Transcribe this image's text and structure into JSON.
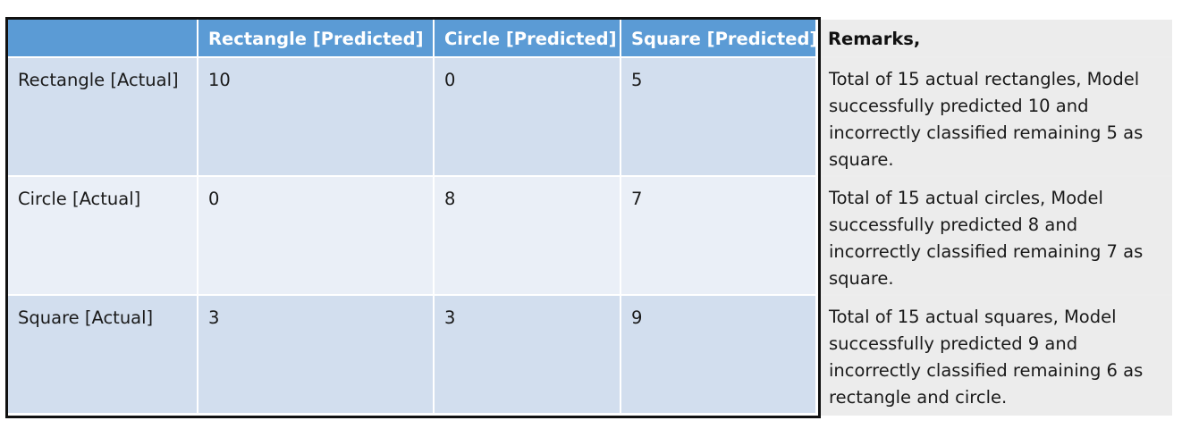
{
  "chart_data": {
    "type": "table",
    "columns": [
      "",
      "Rectangle [Predicted]",
      "Circle [Predicted]",
      "Square [Predicted]",
      "Remarks,"
    ],
    "rows": [
      {
        "label": "Rectangle [Actual]",
        "values": [
          "10",
          "0",
          "5"
        ],
        "remark": "Total of 15 actual rectangles, Model successfully predicted 10 and incorrectly classified remaining 5 as square."
      },
      {
        "label": "Circle [Actual]",
        "values": [
          "0",
          "8",
          "7"
        ],
        "remark": "Total of 15 actual circles, Model successfully predicted 8 and incorrectly classified remaining 7 as square."
      },
      {
        "label": "Square [Actual]",
        "values": [
          "3",
          "3",
          "9"
        ],
        "remark": "Total of 15 actual squares, Model successfully predicted 9 and incorrectly classified remaining 6 as rectangle and circle."
      }
    ]
  },
  "colors": {
    "header": "#5b9bd5",
    "row_dark": "#d2deee",
    "row_light": "#eaeff7",
    "remarks_bg": "#ececec",
    "border": "#111111"
  }
}
